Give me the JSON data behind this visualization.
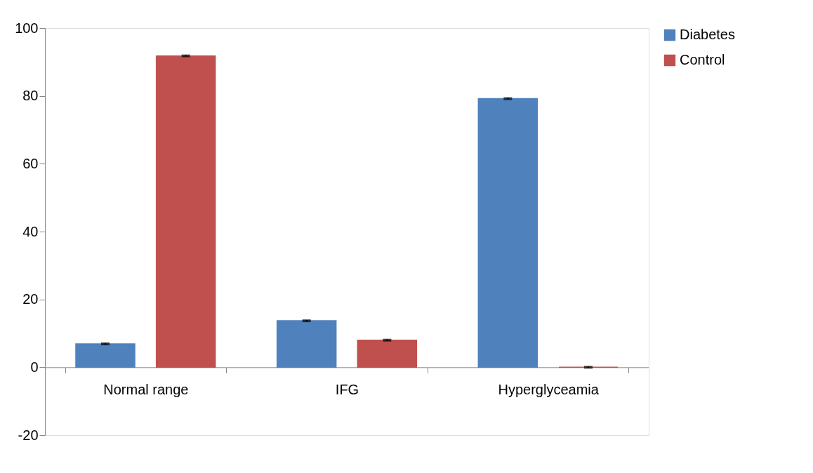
{
  "chart_data": {
    "type": "bar",
    "categories": [
      "Normal range",
      "IFG",
      "Hyperglyceamia"
    ],
    "series": [
      {
        "name": "Diabetes",
        "color": "#4f81bd",
        "values": [
          6.9,
          13.7,
          79.2
        ],
        "errors": [
          0.2,
          0.2,
          0.2
        ]
      },
      {
        "name": "Control",
        "color": "#c0504d",
        "values": [
          91.8,
          8.0,
          0
        ],
        "errors": [
          0.2,
          0.2,
          0.2
        ]
      }
    ],
    "ylim": [
      -20,
      100
    ],
    "yticks": [
      -20,
      0,
      20,
      40,
      60,
      80,
      100
    ],
    "grid": false,
    "legend": "right"
  }
}
